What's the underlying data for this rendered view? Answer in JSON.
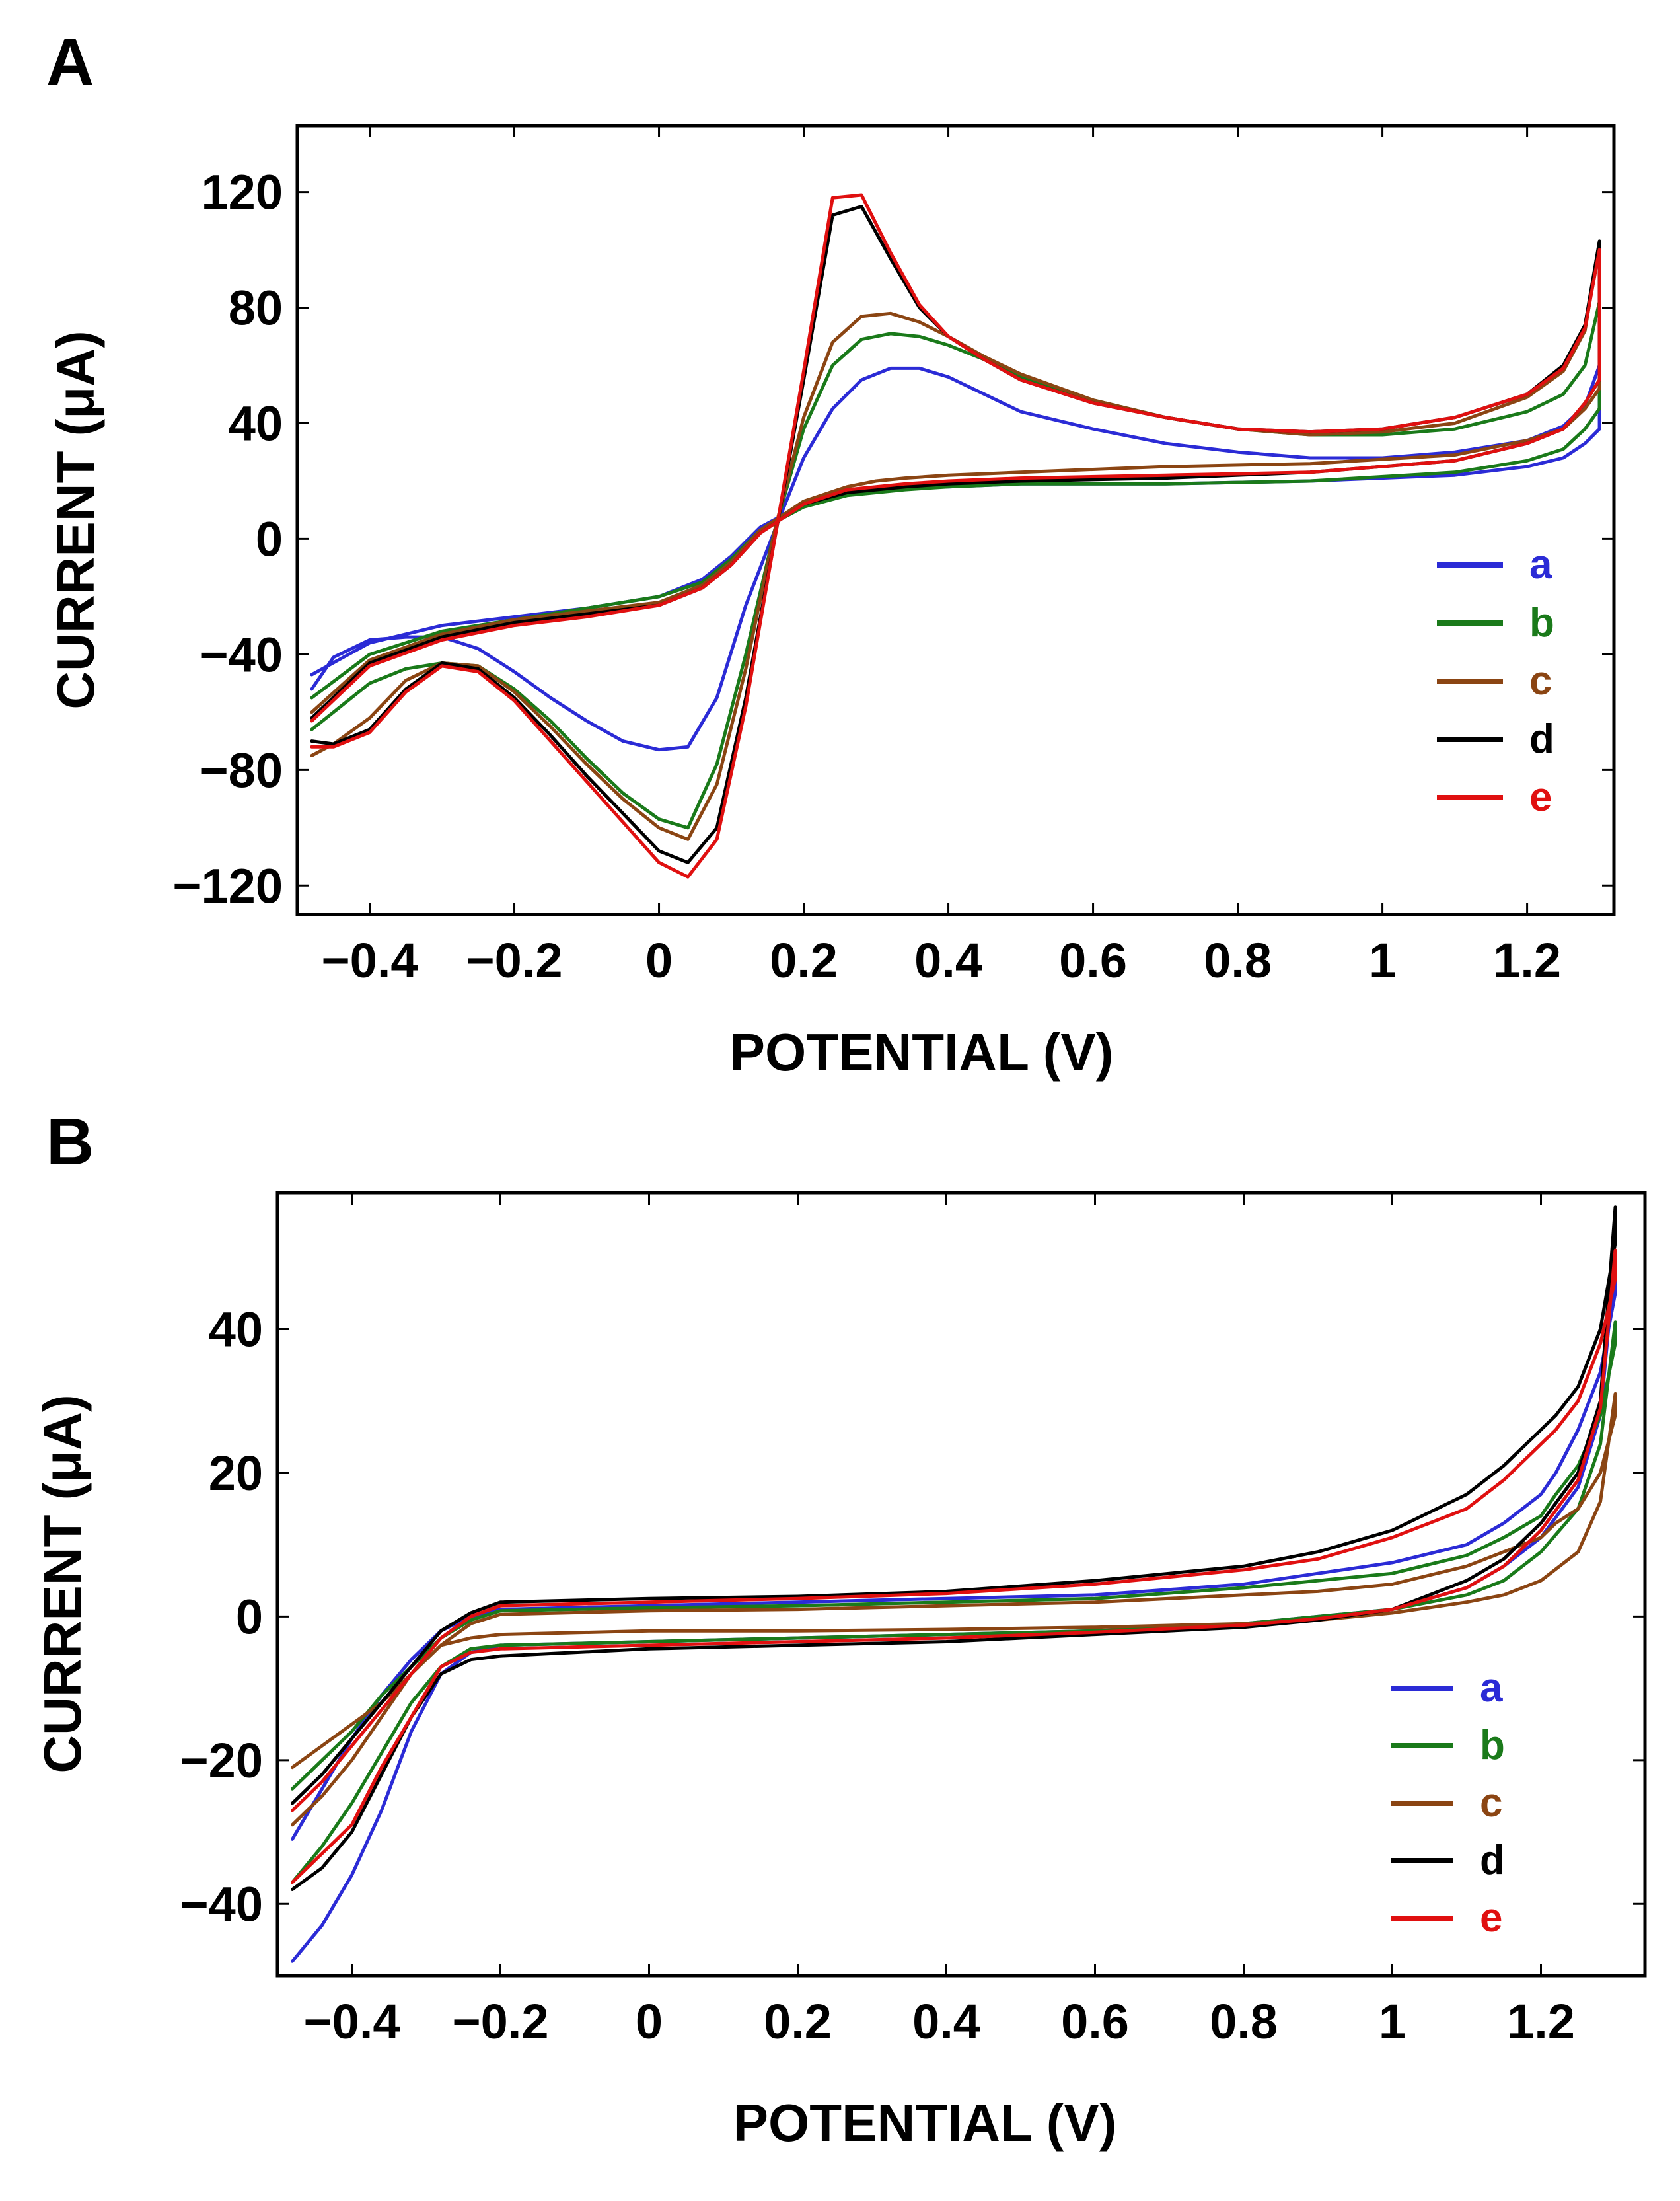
{
  "chart_data": [
    {
      "panel": "A",
      "type": "line",
      "xlabel": "POTENTIAL (V)",
      "ylabel": "CURRENT (μA)",
      "xlim": [
        -0.5,
        1.32
      ],
      "ylim": [
        -130,
        143
      ],
      "xticks": [
        -0.4,
        -0.2,
        0,
        0.2,
        0.4,
        0.6,
        0.8,
        1,
        1.2
      ],
      "xtick_labels": [
        "−0.4",
        "−0.2",
        "0",
        "0.2",
        "0.4",
        "0.6",
        "0.8",
        "1",
        "1.2"
      ],
      "yticks": [
        -120,
        -80,
        -40,
        0,
        40,
        80,
        120
      ],
      "ytick_labels": [
        "−120",
        "−80",
        "−40",
        "0",
        "40",
        "80",
        "120"
      ],
      "legend_position": "right",
      "series": [
        {
          "name": "a",
          "color": "#2b2bd6",
          "x": [
            -0.48,
            -0.4,
            -0.3,
            -0.2,
            -0.1,
            0,
            0.06,
            0.1,
            0.14,
            0.2,
            0.26,
            0.3,
            0.34,
            0.4,
            0.5,
            0.7,
            0.9,
            1.1,
            1.2,
            1.25,
            1.28,
            1.3,
            1.3,
            1.28,
            1.25,
            1.2,
            1.1,
            1.0,
            0.9,
            0.8,
            0.7,
            0.6,
            0.5,
            0.45,
            0.4,
            0.36,
            0.32,
            0.28,
            0.24,
            0.2,
            0.16,
            0.12,
            0.08,
            0.04,
            0,
            -0.05,
            -0.1,
            -0.15,
            -0.2,
            -0.25,
            -0.3,
            -0.35,
            -0.4,
            -0.45,
            -0.48
          ],
          "y": [
            -47,
            -36,
            -30,
            -27,
            -24,
            -20,
            -14,
            -6,
            4,
            12,
            16,
            17,
            18,
            18,
            19,
            19,
            20,
            22,
            25,
            28,
            33,
            38,
            60,
            46,
            39,
            34,
            30,
            28,
            28,
            30,
            33,
            38,
            44,
            50,
            56,
            59,
            59,
            55,
            45,
            28,
            3,
            -23,
            -55,
            -72,
            -73,
            -70,
            -63,
            -55,
            -46,
            -38,
            -34,
            -34,
            -35,
            -41,
            -52
          ]
        },
        {
          "name": "b",
          "color": "#1a7a1a",
          "x": [
            -0.48,
            -0.4,
            -0.3,
            -0.2,
            -0.1,
            0,
            0.06,
            0.1,
            0.14,
            0.2,
            0.26,
            0.3,
            0.34,
            0.4,
            0.5,
            0.7,
            0.9,
            1.1,
            1.2,
            1.25,
            1.28,
            1.3,
            1.3,
            1.28,
            1.25,
            1.2,
            1.1,
            1.0,
            0.9,
            0.8,
            0.7,
            0.6,
            0.5,
            0.45,
            0.4,
            0.36,
            0.32,
            0.28,
            0.24,
            0.2,
            0.16,
            0.12,
            0.08,
            0.04,
            0,
            -0.05,
            -0.1,
            -0.15,
            -0.2,
            -0.25,
            -0.3,
            -0.35,
            -0.4,
            -0.45,
            -0.48
          ],
          "y": [
            -55,
            -40,
            -32,
            -28,
            -24,
            -20,
            -15,
            -7,
            3,
            11,
            15,
            16,
            17,
            18,
            19,
            19,
            20,
            23,
            27,
            31,
            38,
            45,
            82,
            60,
            50,
            44,
            38,
            36,
            36,
            38,
            42,
            48,
            56,
            62,
            67,
            70,
            71,
            69,
            60,
            38,
            3,
            -40,
            -78,
            -100,
            -97,
            -88,
            -76,
            -63,
            -52,
            -44,
            -43,
            -45,
            -50,
            -60,
            -66
          ]
        },
        {
          "name": "c",
          "color": "#8b4513",
          "x": [
            -0.48,
            -0.4,
            -0.3,
            -0.2,
            -0.1,
            0,
            0.06,
            0.1,
            0.14,
            0.2,
            0.26,
            0.3,
            0.34,
            0.4,
            0.5,
            0.7,
            0.9,
            1.1,
            1.2,
            1.25,
            1.28,
            1.3,
            1.3,
            1.28,
            1.25,
            1.2,
            1.1,
            1.0,
            0.9,
            0.8,
            0.7,
            0.6,
            0.5,
            0.45,
            0.4,
            0.36,
            0.32,
            0.28,
            0.24,
            0.2,
            0.16,
            0.12,
            0.08,
            0.04,
            0,
            -0.05,
            -0.1,
            -0.15,
            -0.2,
            -0.25,
            -0.3,
            -0.35,
            -0.4,
            -0.45,
            -0.48
          ],
          "y": [
            -60,
            -42,
            -33,
            -28,
            -25,
            -22,
            -16,
            -8,
            3,
            13,
            18,
            20,
            21,
            22,
            23,
            25,
            26,
            29,
            34,
            38,
            45,
            52,
            102,
            72,
            58,
            49,
            40,
            37,
            36,
            38,
            42,
            48,
            57,
            63,
            70,
            75,
            78,
            77,
            68,
            42,
            3,
            -45,
            -85,
            -104,
            -100,
            -90,
            -78,
            -65,
            -53,
            -44,
            -43,
            -49,
            -62,
            -71,
            -75
          ]
        },
        {
          "name": "d",
          "color": "#000000",
          "x": [
            -0.48,
            -0.4,
            -0.3,
            -0.2,
            -0.1,
            0,
            0.06,
            0.1,
            0.14,
            0.2,
            0.26,
            0.3,
            0.34,
            0.4,
            0.5,
            0.7,
            0.9,
            1.1,
            1.2,
            1.25,
            1.28,
            1.3,
            1.3,
            1.28,
            1.25,
            1.2,
            1.1,
            1.0,
            0.9,
            0.8,
            0.7,
            0.6,
            0.5,
            0.45,
            0.4,
            0.36,
            0.32,
            0.28,
            0.24,
            0.2,
            0.16,
            0.12,
            0.08,
            0.04,
            0,
            -0.05,
            -0.1,
            -0.15,
            -0.2,
            -0.25,
            -0.3,
            -0.35,
            -0.4,
            -0.45,
            -0.48
          ],
          "y": [
            -62,
            -43,
            -34,
            -29,
            -26,
            -23,
            -17,
            -9,
            2,
            12,
            16,
            17,
            18,
            19,
            20,
            21,
            23,
            27,
            33,
            38,
            47,
            55,
            103,
            74,
            60,
            50,
            42,
            38,
            37,
            38,
            42,
            47,
            55,
            62,
            70,
            80,
            97,
            115,
            112,
            55,
            0,
            -55,
            -100,
            -112,
            -108,
            -95,
            -82,
            -68,
            -55,
            -45,
            -43,
            -52,
            -66,
            -71,
            -70
          ]
        },
        {
          "name": "e",
          "color": "#e01010",
          "x": [
            -0.48,
            -0.4,
            -0.3,
            -0.2,
            -0.1,
            0,
            0.06,
            0.1,
            0.14,
            0.2,
            0.26,
            0.3,
            0.34,
            0.4,
            0.5,
            0.7,
            0.9,
            1.1,
            1.2,
            1.25,
            1.28,
            1.3,
            1.3,
            1.28,
            1.25,
            1.2,
            1.1,
            1.0,
            0.9,
            0.8,
            0.7,
            0.6,
            0.5,
            0.45,
            0.4,
            0.36,
            0.32,
            0.28,
            0.24,
            0.2,
            0.16,
            0.12,
            0.08,
            0.04,
            0,
            -0.05,
            -0.1,
            -0.15,
            -0.2,
            -0.25,
            -0.3,
            -0.35,
            -0.4,
            -0.45,
            -0.48
          ],
          "y": [
            -63,
            -44,
            -35,
            -30,
            -27,
            -23,
            -17,
            -9,
            2,
            12,
            17,
            18,
            19,
            20,
            21,
            22,
            23,
            27,
            33,
            38,
            47,
            55,
            100,
            73,
            59,
            50,
            42,
            38,
            37,
            38,
            42,
            47,
            55,
            62,
            70,
            81,
            99,
            119,
            118,
            58,
            0,
            -58,
            -104,
            -117,
            -112,
            -98,
            -84,
            -70,
            -56,
            -46,
            -44,
            -53,
            -67,
            -72,
            -72
          ]
        }
      ]
    },
    {
      "panel": "B",
      "type": "line",
      "xlabel": "POTENTIAL (V)",
      "ylabel": "CURRENT (μA)",
      "xlim": [
        -0.5,
        1.34
      ],
      "ylim": [
        -50,
        59
      ],
      "xticks": [
        -0.4,
        -0.2,
        0,
        0.2,
        0.4,
        0.6,
        0.8,
        1,
        1.2
      ],
      "xtick_labels": [
        "−0.4",
        "−0.2",
        "0",
        "0.2",
        "0.4",
        "0.6",
        "0.8",
        "1",
        "1.2"
      ],
      "yticks": [
        -40,
        -20,
        0,
        20,
        40
      ],
      "ytick_labels": [
        "−40",
        "−20",
        "0",
        "20",
        "40"
      ],
      "legend_position": "right",
      "series": [
        {
          "name": "a",
          "color": "#2b2bd6",
          "x": [
            -0.48,
            -0.44,
            -0.4,
            -0.36,
            -0.32,
            -0.28,
            -0.24,
            -0.2,
            0,
            0.2,
            0.4,
            0.6,
            0.8,
            0.9,
            1.0,
            1.1,
            1.15,
            1.2,
            1.25,
            1.28,
            1.3,
            1.3,
            1.28,
            1.25,
            1.22,
            1.2,
            1.15,
            1.1,
            1.0,
            0.9,
            0.8,
            0.6,
            0.4,
            0.2,
            0,
            -0.2,
            -0.24,
            -0.28,
            -0.32,
            -0.36,
            -0.4,
            -0.44,
            -0.48
          ],
          "y": [
            -48,
            -43,
            -36,
            -27,
            -16,
            -8,
            -5,
            -4,
            -3.5,
            -3,
            -2.5,
            -2,
            -1,
            0,
            1,
            4,
            7,
            11,
            18,
            28,
            50,
            45,
            34,
            26,
            20,
            17,
            13,
            10,
            7.5,
            6,
            4.5,
            3,
            2.5,
            2,
            1.5,
            1,
            0,
            -2,
            -6,
            -11,
            -17,
            -24,
            -31
          ]
        },
        {
          "name": "b",
          "color": "#1a7a1a",
          "x": [
            -0.48,
            -0.44,
            -0.4,
            -0.36,
            -0.32,
            -0.28,
            -0.24,
            -0.2,
            0,
            0.2,
            0.4,
            0.6,
            0.8,
            0.9,
            1.0,
            1.1,
            1.15,
            1.2,
            1.25,
            1.28,
            1.3,
            1.3,
            1.28,
            1.25,
            1.22,
            1.2,
            1.15,
            1.1,
            1.0,
            0.9,
            0.8,
            0.6,
            0.4,
            0.2,
            0,
            -0.2,
            -0.24,
            -0.28,
            -0.32,
            -0.36,
            -0.4,
            -0.44,
            -0.48
          ],
          "y": [
            -37,
            -32,
            -26,
            -19,
            -12,
            -7,
            -4.5,
            -4,
            -3.5,
            -3,
            -2.5,
            -2,
            -1,
            0,
            1,
            3,
            5,
            9,
            15,
            24,
            41,
            38,
            28,
            21,
            17,
            14,
            11,
            8.5,
            6,
            5,
            4,
            2.5,
            2,
            1.5,
            1.2,
            0.8,
            -0.5,
            -3,
            -7,
            -11,
            -16,
            -20,
            -24
          ]
        },
        {
          "name": "c",
          "color": "#8b4513",
          "x": [
            -0.48,
            -0.44,
            -0.4,
            -0.36,
            -0.32,
            -0.28,
            -0.24,
            -0.2,
            0,
            0.2,
            0.4,
            0.6,
            0.8,
            0.9,
            1.0,
            1.1,
            1.15,
            1.2,
            1.25,
            1.28,
            1.3,
            1.3,
            1.28,
            1.25,
            1.22,
            1.2,
            1.15,
            1.1,
            1.0,
            0.9,
            0.8,
            0.6,
            0.4,
            0.2,
            0,
            -0.2,
            -0.24,
            -0.28,
            -0.32,
            -0.36,
            -0.4,
            -0.44,
            -0.48
          ],
          "y": [
            -29,
            -25,
            -20,
            -14,
            -8,
            -4,
            -3,
            -2.5,
            -2,
            -2,
            -1.8,
            -1.5,
            -1,
            -0.5,
            0.5,
            2,
            3,
            5,
            9,
            16,
            31,
            28,
            20,
            15,
            13,
            11,
            9,
            7,
            4.5,
            3.5,
            3,
            2,
            1.5,
            1,
            0.8,
            0.3,
            -1,
            -4,
            -8,
            -12,
            -15,
            -18,
            -21
          ]
        },
        {
          "name": "d",
          "color": "#000000",
          "x": [
            -0.48,
            -0.44,
            -0.4,
            -0.36,
            -0.32,
            -0.28,
            -0.24,
            -0.2,
            0,
            0.2,
            0.4,
            0.6,
            0.8,
            0.9,
            1.0,
            1.1,
            1.15,
            1.2,
            1.25,
            1.28,
            1.3,
            1.3,
            1.28,
            1.25,
            1.22,
            1.2,
            1.15,
            1.1,
            1.0,
            0.9,
            0.8,
            0.6,
            0.4,
            0.2,
            0,
            -0.2,
            -0.24,
            -0.28,
            -0.32,
            -0.36,
            -0.4,
            -0.44,
            -0.48
          ],
          "y": [
            -38,
            -35,
            -30,
            -22,
            -14,
            -8,
            -6,
            -5.5,
            -4.5,
            -4,
            -3.5,
            -2.5,
            -1.5,
            -0.5,
            1,
            5,
            8,
            13,
            20,
            30,
            57,
            52,
            40,
            32,
            28,
            26,
            21,
            17,
            12,
            9,
            7,
            5,
            3.5,
            2.8,
            2.5,
            2,
            0.5,
            -2,
            -7,
            -12,
            -17,
            -22,
            -26
          ]
        },
        {
          "name": "e",
          "color": "#e01010",
          "x": [
            -0.48,
            -0.44,
            -0.4,
            -0.36,
            -0.32,
            -0.28,
            -0.24,
            -0.2,
            0,
            0.2,
            0.4,
            0.6,
            0.8,
            0.9,
            1.0,
            1.1,
            1.15,
            1.2,
            1.25,
            1.28,
            1.3,
            1.3,
            1.28,
            1.25,
            1.22,
            1.2,
            1.15,
            1.1,
            1.0,
            0.9,
            0.8,
            0.6,
            0.4,
            0.2,
            0,
            -0.2,
            -0.24,
            -0.28,
            -0.32,
            -0.36,
            -0.4,
            -0.44,
            -0.48
          ],
          "y": [
            -37,
            -33,
            -29,
            -21,
            -14,
            -7,
            -5,
            -4.5,
            -4,
            -3.5,
            -3,
            -2.2,
            -1.2,
            -0.3,
            1,
            4,
            7,
            12,
            19,
            29,
            51,
            47,
            38,
            30,
            26,
            24,
            19,
            15,
            11,
            8,
            6.5,
            4.5,
            3.2,
            2.5,
            2,
            1.5,
            0,
            -3,
            -8,
            -13,
            -18,
            -23,
            -27
          ]
        }
      ]
    }
  ]
}
